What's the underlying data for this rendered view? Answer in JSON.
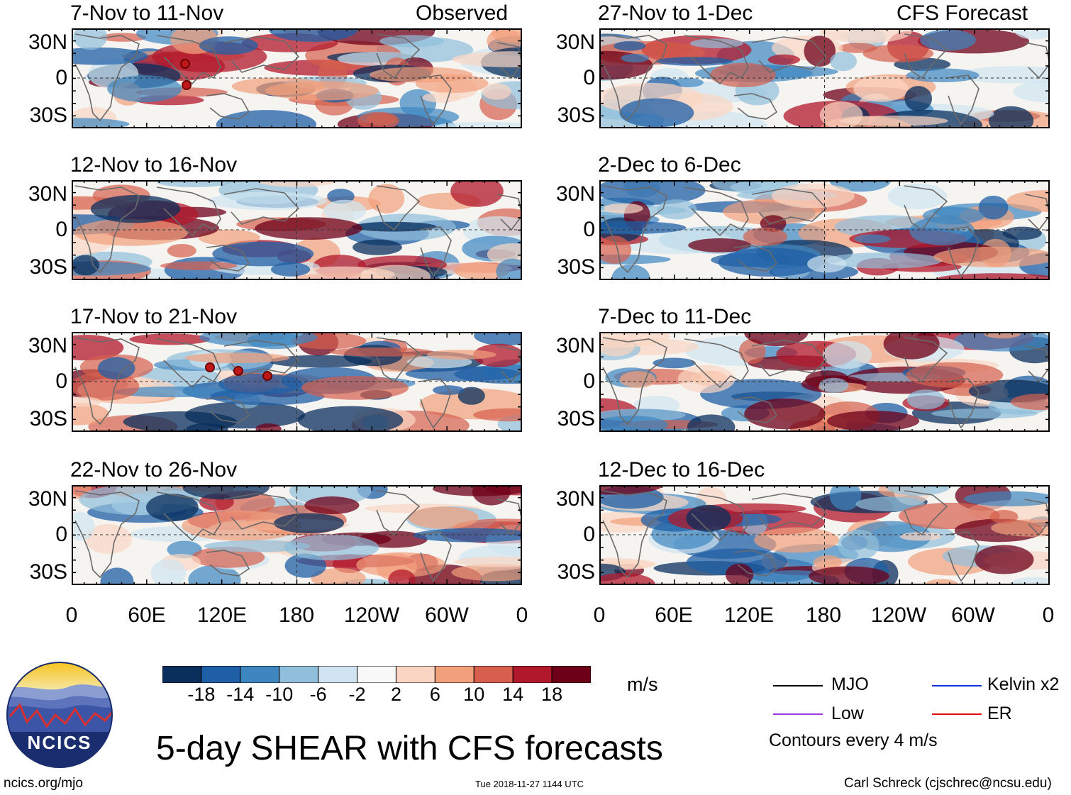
{
  "chart_data": {
    "type": "heatmap",
    "title": "5-day SHEAR with CFS forecasts",
    "variable": "SHEAR",
    "units": "m/s",
    "x_tick_labels": [
      "0",
      "60E",
      "120E",
      "180",
      "120W",
      "60W",
      "0"
    ],
    "y_tick_labels": [
      "30N",
      "0",
      "30S"
    ],
    "xlim_deg": [
      0,
      360
    ],
    "ylim_deg": [
      -40,
      40
    ],
    "column_headers": [
      "Observed",
      "CFS Forecast"
    ],
    "panels": [
      {
        "title": "7-Nov to 11-Nov",
        "source": "Observed",
        "cyclone_markers": 2
      },
      {
        "title": "12-Nov to 16-Nov",
        "source": "Observed",
        "cyclone_markers": 0
      },
      {
        "title": "17-Nov to 21-Nov",
        "source": "Observed",
        "cyclone_markers": 3
      },
      {
        "title": "22-Nov to 26-Nov",
        "source": "Observed",
        "cyclone_markers": 0
      },
      {
        "title": "27-Nov to 1-Dec",
        "source": "CFS Forecast",
        "cyclone_markers": 0
      },
      {
        "title": "2-Dec to 6-Dec",
        "source": "CFS Forecast",
        "cyclone_markers": 0
      },
      {
        "title": "7-Dec to 11-Dec",
        "source": "CFS Forecast",
        "cyclone_markers": 0
      },
      {
        "title": "12-Dec to 16-Dec",
        "source": "CFS Forecast",
        "cyclone_markers": 0
      }
    ],
    "colorbar": {
      "ticks": [
        "-18",
        "-14",
        "-10",
        "-6",
        "-2",
        "2",
        "6",
        "10",
        "14",
        "18"
      ],
      "colors": [
        "#0a2f5c",
        "#1f5fa6",
        "#3d86c0",
        "#90bfdc",
        "#d0e5f1",
        "#f8f8f8",
        "#fbd5c3",
        "#f2a07c",
        "#d6604d",
        "#b2182b",
        "#6d0018"
      ]
    },
    "legend": [
      {
        "label": "MJO",
        "color": "#000000"
      },
      {
        "label": "Kelvin x2",
        "color": "#1030d8"
      },
      {
        "label": "Low",
        "color": "#9b3ae0"
      },
      {
        "label": "ER",
        "color": "#e01010"
      }
    ],
    "contour_note": "Contours every 4 m/s"
  },
  "footer": {
    "logo_text": "NCICS",
    "url": "ncics.org/mjo",
    "timestamp": "Tue 2018-11-27 1144 UTC",
    "credit": "Carl Schreck (cjschrec@ncsu.edu)"
  }
}
